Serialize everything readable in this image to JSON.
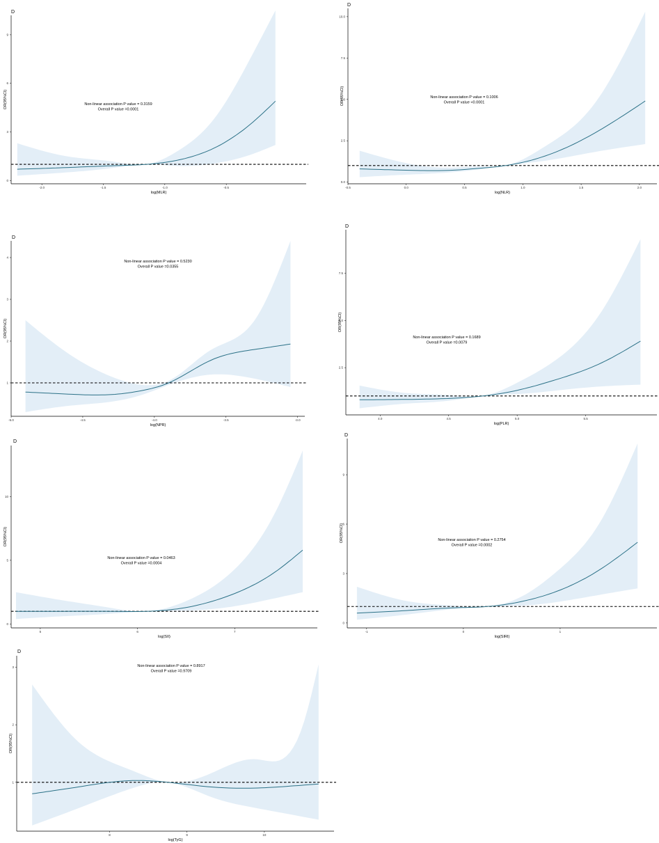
{
  "chart_data": [
    {
      "type": "line",
      "panel_label": "D",
      "xlabel": "log(MLR)",
      "ylabel": "OR(95%CI)",
      "annotation": [
        "Non-linear association P value = 0.3159",
        "Overall P value =0.0001"
      ],
      "xlim": [
        -2.25,
        0.15
      ],
      "ylim": [
        -0.2,
        10.2
      ],
      "x_ticks": [
        -2.0,
        -1.5,
        -1.0,
        -0.5
      ],
      "x_tick_labels": [
        "-2.0",
        "-1.5",
        "-1.0",
        "-0.5"
      ],
      "y_ticks": [
        0,
        3,
        6,
        9
      ],
      "y_tick_labels": [
        "0",
        "3",
        "6",
        "9"
      ],
      "reference_line": 1,
      "grid": false,
      "series": [
        {
          "x": [
            -2.2,
            -1.8,
            -1.4,
            -1.15,
            -0.9,
            -0.6,
            -0.3,
            -0.1
          ],
          "y": [
            0.7,
            0.8,
            0.92,
            1.0,
            1.25,
            2.0,
            3.5,
            4.9
          ],
          "lower": [
            0.3,
            0.5,
            0.8,
            1.0,
            0.9,
            1.05,
            1.6,
            2.2
          ],
          "upper": [
            2.3,
            1.5,
            1.15,
            1.0,
            1.8,
            3.8,
            7.6,
            10.5
          ]
        }
      ]
    },
    {
      "type": "line",
      "panel_label": "D",
      "xlabel": "log(NLR)",
      "ylabel": "OR(95%CI)",
      "annotation": [
        "Non-linear association P value = 0.1006",
        "Overall P value <0.0001"
      ],
      "xlim": [
        -0.5,
        2.15
      ],
      "ylim": [
        -0.1,
        10.5
      ],
      "x_ticks": [
        -0.5,
        0.0,
        0.5,
        1.0,
        1.5,
        2.0
      ],
      "x_tick_labels": [
        "-0.5",
        "0.0",
        "0.5",
        "1.0",
        "1.5",
        "2.0"
      ],
      "y_ticks": [
        0.0,
        2.5,
        5.0,
        7.5,
        10.0
      ],
      "y_tick_labels": [
        "0.0",
        "2.5",
        "5.0",
        "7.5",
        "10.0"
      ],
      "reference_line": 1,
      "grid": false,
      "series": [
        {
          "x": [
            -0.4,
            0.0,
            0.4,
            0.6,
            0.85,
            1.2,
            1.6,
            2.05
          ],
          "y": [
            0.8,
            0.72,
            0.72,
            0.82,
            1.0,
            1.6,
            2.9,
            4.9
          ],
          "lower": [
            0.3,
            0.45,
            0.6,
            0.75,
            1.0,
            1.3,
            1.8,
            2.3
          ],
          "upper": [
            1.9,
            1.15,
            0.88,
            0.95,
            1.0,
            2.2,
            4.6,
            10.3
          ]
        }
      ]
    },
    {
      "type": "line",
      "panel_label": "D",
      "xlabel": "log(NPR)",
      "ylabel": "OR(95%CI)",
      "annotation": [
        "Non-linear association P value = 0.5230",
        "Overall P value =0.0355"
      ],
      "xlim": [
        -5.0,
        -2.95
      ],
      "ylim": [
        0.2,
        4.4
      ],
      "x_ticks": [
        -5.0,
        -4.5,
        -4.0,
        -3.5,
        -3.0
      ],
      "x_tick_labels": [
        "-5.0",
        "-4.5",
        "-4.0",
        "-3.5",
        "-3.0"
      ],
      "y_ticks": [
        1,
        2,
        3,
        4
      ],
      "y_tick_labels": [
        "1",
        "2",
        "3",
        "4"
      ],
      "reference_line": 1,
      "grid": false,
      "series": [
        {
          "x": [
            -4.9,
            -4.6,
            -4.3,
            -4.08,
            -3.9,
            -3.6,
            -3.3,
            -3.05
          ],
          "y": [
            0.78,
            0.73,
            0.72,
            0.82,
            1.0,
            1.55,
            1.8,
            1.93
          ],
          "lower": [
            0.3,
            0.45,
            0.55,
            0.72,
            0.95,
            1.2,
            1.1,
            0.9
          ],
          "upper": [
            2.5,
            1.7,
            1.15,
            0.95,
            1.05,
            1.8,
            2.5,
            4.4
          ]
        }
      ]
    },
    {
      "type": "line",
      "panel_label": "D",
      "xlabel": "log(PLR)",
      "ylabel": "OR(95%CI)",
      "annotation": [
        "Non-linear association P value = 0.1689",
        "Overall P value =0.0079"
      ],
      "xlim": [
        3.75,
        6.02
      ],
      "ylim": [
        0.0,
        9.8
      ],
      "x_ticks": [
        4.0,
        4.5,
        5.0,
        5.5
      ],
      "x_tick_labels": [
        "4.0",
        "4.5",
        "5.0",
        "5.5"
      ],
      "y_ticks": [
        2.5,
        5.0,
        7.5
      ],
      "y_tick_labels": [
        "2.5",
        "5.0",
        "7.5"
      ],
      "reference_line": 1,
      "grid": false,
      "series": [
        {
          "x": [
            3.85,
            4.2,
            4.5,
            4.75,
            5.0,
            5.3,
            5.6,
            5.9
          ],
          "y": [
            0.8,
            0.82,
            0.87,
            1.0,
            1.3,
            1.9,
            2.7,
            3.9
          ],
          "lower": [
            0.35,
            0.6,
            0.75,
            1.0,
            1.1,
            1.3,
            1.5,
            1.6
          ],
          "upper": [
            1.55,
            1.15,
            1.05,
            1.0,
            1.7,
            3.0,
            5.3,
            9.3
          ]
        }
      ]
    },
    {
      "type": "line",
      "panel_label": "D",
      "xlabel": "log(SII)",
      "ylabel": "OR(95%CI)",
      "annotation": [
        "Non-linear association P value = 0.0463",
        "Overall P value =0.0004"
      ],
      "xlim": [
        4.7,
        7.85
      ],
      "ylim": [
        -0.3,
        14.0
      ],
      "x_ticks": [
        5,
        6,
        7
      ],
      "x_tick_labels": [
        "5",
        "6",
        "7"
      ],
      "y_ticks": [
        0,
        5,
        10
      ],
      "y_tick_labels": [
        "0",
        "5",
        "10"
      ],
      "reference_line": 1,
      "grid": false,
      "series": [
        {
          "x": [
            4.75,
            5.2,
            5.7,
            6.1,
            6.5,
            7.0,
            7.4,
            7.7
          ],
          "y": [
            1.0,
            1.0,
            1.0,
            1.0,
            1.3,
            2.4,
            4.0,
            5.8
          ],
          "lower": [
            0.4,
            0.6,
            0.8,
            1.0,
            1.05,
            1.4,
            2.0,
            2.5
          ],
          "upper": [
            2.5,
            1.9,
            1.3,
            1.0,
            1.8,
            4.3,
            8.5,
            13.6
          ]
        }
      ]
    },
    {
      "type": "line",
      "panel_label": "D",
      "xlabel": "log(SIRI)",
      "ylabel": "OR(95%CI)",
      "annotation": [
        "Non-linear association P value = 0.2754",
        "Overall P value =0.0002"
      ],
      "xlim": [
        -1.2,
        2.0
      ],
      "ylim": [
        -0.3,
        11.2
      ],
      "x_ticks": [
        -1,
        0,
        1
      ],
      "x_tick_labels": [
        "-1",
        "0",
        "1"
      ],
      "y_ticks": [
        0,
        3,
        6,
        9
      ],
      "y_tick_labels": [
        "0",
        "3",
        "6",
        "9"
      ],
      "reference_line": 1,
      "grid": false,
      "series": [
        {
          "x": [
            -1.1,
            -0.6,
            -0.1,
            0.25,
            0.6,
            1.0,
            1.4,
            1.8
          ],
          "y": [
            0.6,
            0.75,
            0.92,
            1.0,
            1.3,
            2.0,
            3.2,
            4.9
          ],
          "lower": [
            0.2,
            0.5,
            0.85,
            1.0,
            1.05,
            1.3,
            1.7,
            2.1
          ],
          "upper": [
            2.2,
            1.35,
            1.05,
            1.0,
            1.6,
            3.3,
            6.0,
            10.9
          ]
        }
      ]
    },
    {
      "type": "line",
      "panel_label": "D",
      "xlabel": "log(TyG)",
      "ylabel": "OR(95%CI)",
      "annotation": [
        "Non-linear association P value = 0.8917",
        "Overall P value =0.9709"
      ],
      "xlim": [
        6.8,
        10.9
      ],
      "ylim": [
        0.15,
        3.2
      ],
      "x_ticks": [
        8,
        9,
        10
      ],
      "x_tick_labels": [
        "8",
        "9",
        "10"
      ],
      "y_ticks": [
        1,
        2,
        3
      ],
      "y_tick_labels": [
        "1",
        "2",
        "3"
      ],
      "reference_line": 1,
      "grid": false,
      "series": [
        {
          "x": [
            7.0,
            7.6,
            8.3,
            8.75,
            9.3,
            9.9,
            10.5,
            10.7
          ],
          "y": [
            0.8,
            0.92,
            1.03,
            1.0,
            0.92,
            0.9,
            0.95,
            0.97
          ],
          "lower": [
            0.25,
            0.55,
            0.9,
            1.0,
            0.75,
            0.55,
            0.4,
            0.35
          ],
          "upper": [
            2.7,
            1.7,
            1.2,
            1.0,
            1.15,
            1.4,
            2.0,
            3.05
          ]
        }
      ]
    }
  ],
  "colors": {
    "curve": "#2b7187",
    "band": "#e3eef7",
    "axis": "#000000",
    "reference_line": "#000000"
  }
}
